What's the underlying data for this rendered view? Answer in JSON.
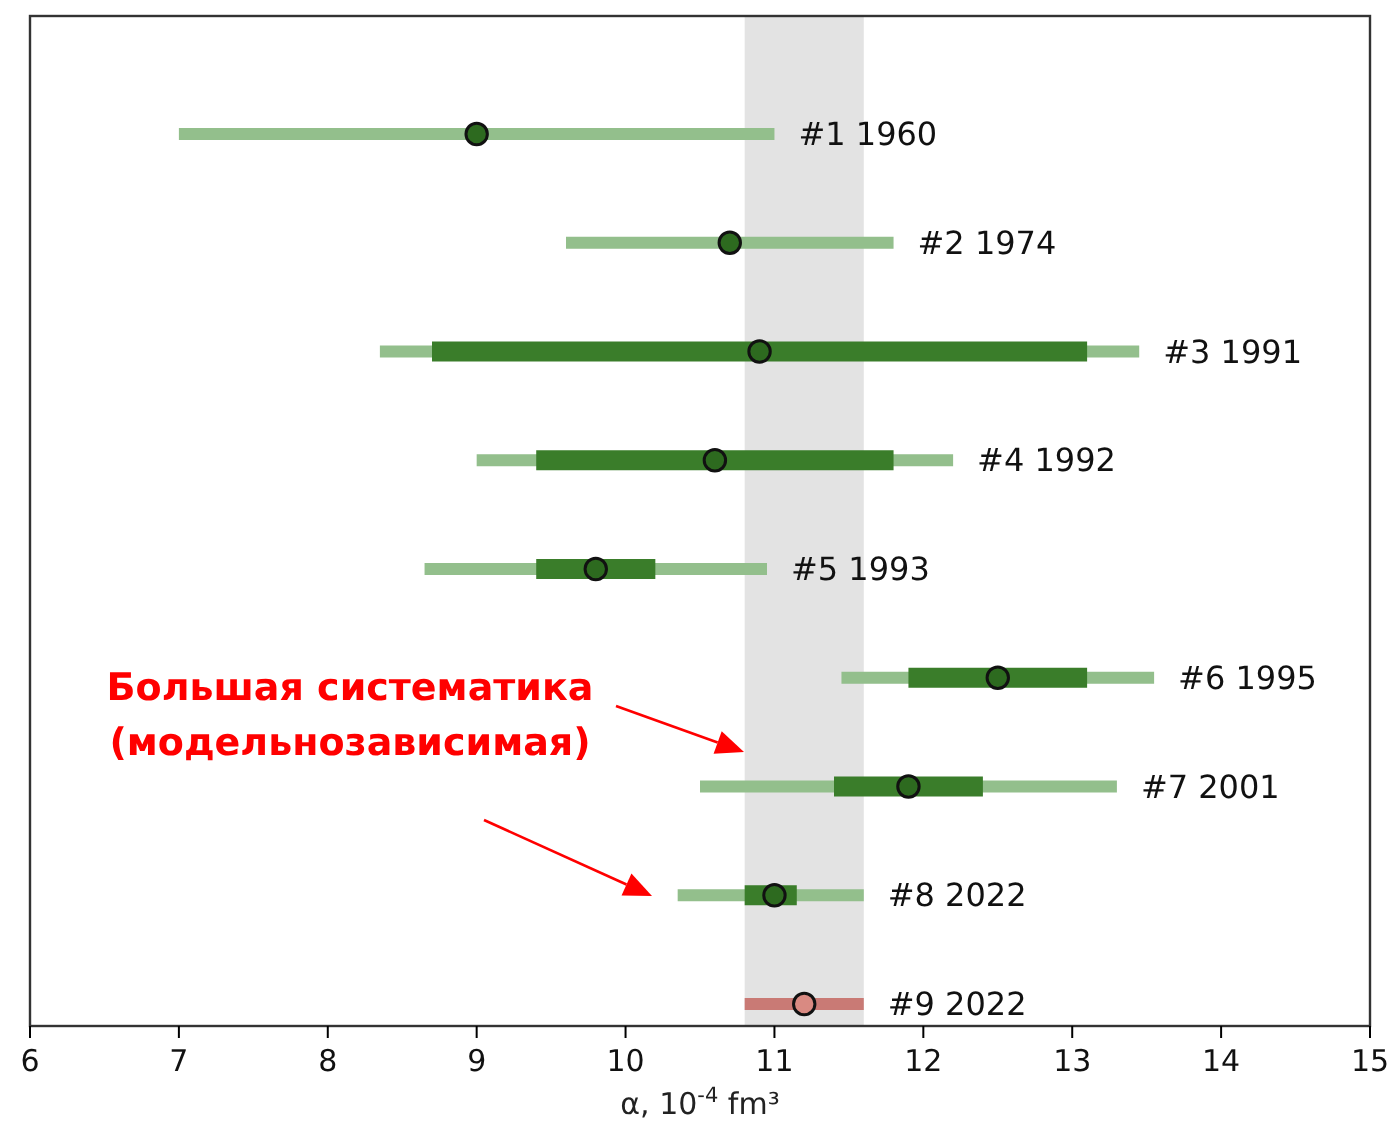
{
  "chart_data": {
    "type": "bar",
    "orientation": "horizontal",
    "xlabel": "α, 10$^{-4}$ fm³",
    "categories": [
      "#1 1960",
      "#2 1974",
      "#3 1991",
      "#4 1992",
      "#5 1993",
      "#6 1995",
      "#7 2001",
      "#8 2022",
      "#9 2022"
    ],
    "xlim": [
      6,
      15
    ],
    "xticks": [
      6,
      7,
      8,
      9,
      10,
      11,
      12,
      13,
      14,
      15
    ],
    "tick_labels": "x",
    "grid": false,
    "bands": [
      {
        "axis": "x",
        "from": 10.8,
        "to": 11.6,
        "color": "#e3e3e3"
      }
    ],
    "series": [
      {
        "base": [
          7.0,
          9.6,
          8.35,
          9.0,
          8.65,
          11.45,
          10.5,
          10.35,
          10.8
        ],
        "values": [
          4.0,
          2.2,
          5.1,
          3.2,
          2.3,
          2.1,
          2.8,
          1.25,
          0.8
        ],
        "colors": [
          "#93bf8c",
          "#93bf8c",
          "#93bf8c",
          "#93bf8c",
          "#93bf8c",
          "#93bf8c",
          "#93bf8c",
          "#93bf8c",
          "#c97a75"
        ]
      },
      {
        "base": [
          null,
          null,
          8.7,
          9.4,
          9.4,
          11.9,
          11.4,
          10.8,
          null
        ],
        "values": [
          null,
          null,
          4.4,
          2.4,
          0.8,
          1.2,
          1.0,
          0.35,
          null
        ],
        "color": "#3a7d2a"
      },
      {
        "type": "scatter",
        "marker": "circle",
        "values": [
          9.0,
          10.7,
          10.9,
          10.6,
          9.8,
          12.5,
          11.9,
          11.0,
          11.2
        ],
        "colors": [
          "#2d6a1f",
          "#2d6a1f",
          "#2d6a1f",
          "#2d6a1f",
          "#2d6a1f",
          "#2d6a1f",
          "#2d6a1f",
          "#2d6a1f",
          "#d98a82"
        ]
      }
    ],
    "annotations": [
      "Большая систематика\n(модельнозависимая)"
    ]
  }
}
